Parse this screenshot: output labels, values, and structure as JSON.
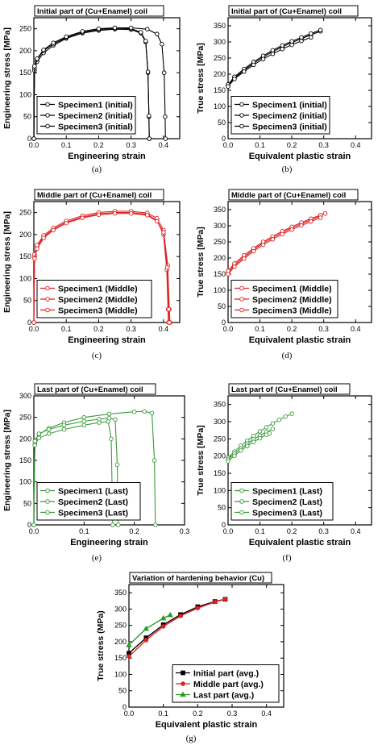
{
  "chart_data": [
    {
      "id": "a",
      "type": "line",
      "title": "Initial part of (Cu+Enamel) coil",
      "xlabel": "Engineering strain",
      "ylabel": "Engineering stress [MPa]",
      "xlim": [
        0,
        0.45
      ],
      "ylim": [
        0,
        275
      ],
      "xticks": [
        "0.0",
        "0.1",
        "0.2",
        "0.3",
        "0.4"
      ],
      "yticks": [
        "0",
        "50",
        "100",
        "150",
        "200",
        "250"
      ],
      "legend_position": "bottom-left",
      "color": "#000000",
      "caption": "(a)",
      "series": [
        {
          "name": "Specimen1 (initial)",
          "marker": "circle",
          "x": [
            0,
            0.002,
            0.01,
            0.03,
            0.06,
            0.1,
            0.15,
            0.2,
            0.25,
            0.3,
            0.33,
            0.345,
            0.352,
            0.355,
            0.356
          ],
          "y": [
            0,
            155,
            175,
            195,
            212,
            228,
            240,
            246,
            249,
            248,
            240,
            220,
            150,
            50,
            0
          ]
        },
        {
          "name": "Specimen2 (initial)",
          "marker": "circle",
          "x": [
            0,
            0.002,
            0.01,
            0.03,
            0.06,
            0.1,
            0.15,
            0.2,
            0.25,
            0.3,
            0.33,
            0.345,
            0.352,
            0.355,
            0.356
          ],
          "y": [
            0,
            160,
            180,
            200,
            215,
            230,
            242,
            248,
            251,
            250,
            242,
            222,
            152,
            52,
            0
          ]
        },
        {
          "name": "Specimen3 (initial)",
          "marker": "circle",
          "x": [
            0,
            0.002,
            0.01,
            0.03,
            0.06,
            0.1,
            0.15,
            0.2,
            0.25,
            0.3,
            0.35,
            0.38,
            0.395,
            0.402,
            0.405,
            0.406
          ],
          "y": [
            0,
            165,
            182,
            202,
            218,
            232,
            244,
            250,
            252,
            252,
            249,
            238,
            215,
            150,
            50,
            0
          ]
        }
      ]
    },
    {
      "id": "b",
      "type": "line",
      "title": "Initial part of (Cu+Enamel) coil",
      "xlabel": "Equivalent plastic strain",
      "ylabel": "True stress [MPa]",
      "xlim": [
        0,
        0.45
      ],
      "ylim": [
        0,
        375
      ],
      "xticks": [
        "0.0",
        "0.1",
        "0.2",
        "0.3",
        "0.4"
      ],
      "yticks": [
        "0",
        "50",
        "100",
        "150",
        "200",
        "250",
        "300",
        "350"
      ],
      "legend_position": "bottom-left",
      "color": "#000000",
      "caption": "(b)",
      "series": [
        {
          "name": "Specimen1 (initial)",
          "marker": "circle",
          "x": [
            0,
            0.02,
            0.05,
            0.08,
            0.11,
            0.14,
            0.17,
            0.2,
            0.23,
            0.26,
            0.29
          ],
          "y": [
            165,
            188,
            212,
            234,
            253,
            270,
            285,
            298,
            310,
            322,
            333
          ]
        },
        {
          "name": "Specimen2 (initial)",
          "marker": "circle",
          "x": [
            0,
            0.02,
            0.05,
            0.08,
            0.11,
            0.14,
            0.17,
            0.2,
            0.23,
            0.26,
            0.29
          ],
          "y": [
            168,
            192,
            216,
            238,
            257,
            274,
            289,
            302,
            314,
            326,
            337
          ]
        },
        {
          "name": "Specimen3 (initial)",
          "marker": "circle",
          "x": [
            0,
            0.02,
            0.05,
            0.08,
            0.11,
            0.14,
            0.17,
            0.2,
            0.23,
            0.26
          ],
          "y": [
            162,
            185,
            208,
            229,
            247,
            263,
            278,
            291,
            303,
            314
          ]
        }
      ]
    },
    {
      "id": "c",
      "type": "line",
      "title": "Middle part of (Cu+Enamel) coil",
      "xlabel": "Engineering strain",
      "ylabel": "Engineering stress [MPa]",
      "xlim": [
        0,
        0.45
      ],
      "ylim": [
        0,
        275
      ],
      "xticks": [
        "0.0",
        "0.1",
        "0.2",
        "0.3",
        "0.4"
      ],
      "yticks": [
        "0",
        "50",
        "100",
        "150",
        "200",
        "250"
      ],
      "legend_position": "bottom-left",
      "color": "#e02020",
      "caption": "(c)",
      "series": [
        {
          "name": "Specimen1 (Middle)",
          "marker": "circle",
          "x": [
            0,
            0.002,
            0.01,
            0.03,
            0.06,
            0.1,
            0.15,
            0.2,
            0.25,
            0.3,
            0.35,
            0.38,
            0.4,
            0.41,
            0.414,
            0.415
          ],
          "y": [
            0,
            150,
            172,
            195,
            212,
            228,
            240,
            247,
            250,
            250,
            246,
            232,
            200,
            120,
            30,
            0
          ]
        },
        {
          "name": "Specimen2 (Middle)",
          "marker": "circle",
          "x": [
            0,
            0.002,
            0.01,
            0.03,
            0.06,
            0.1,
            0.15,
            0.2,
            0.25,
            0.3,
            0.35,
            0.38,
            0.4,
            0.413,
            0.418,
            0.42
          ],
          "y": [
            0,
            155,
            176,
            198,
            215,
            231,
            243,
            250,
            253,
            253,
            249,
            237,
            210,
            130,
            30,
            0
          ]
        },
        {
          "name": "Specimen3 (Middle)",
          "marker": "circle",
          "x": [
            0,
            0.002,
            0.01,
            0.03,
            0.06,
            0.1,
            0.15,
            0.2,
            0.25,
            0.3,
            0.35,
            0.38,
            0.4,
            0.412,
            0.416,
            0.418
          ],
          "y": [
            0,
            145,
            168,
            192,
            210,
            226,
            238,
            245,
            248,
            248,
            244,
            230,
            205,
            125,
            30,
            0
          ]
        }
      ]
    },
    {
      "id": "d",
      "type": "line",
      "title": "Middle part of (Cu+Enamel) coil",
      "xlabel": "Equivalent plastic strain",
      "ylabel": "True stress [MPa]",
      "xlim": [
        0,
        0.45
      ],
      "ylim": [
        0,
        375
      ],
      "xticks": [
        "0.0",
        "0.1",
        "0.2",
        "0.3",
        "0.4"
      ],
      "yticks": [
        "0",
        "50",
        "100",
        "150",
        "200",
        "250",
        "300",
        "350"
      ],
      "legend_position": "bottom-left",
      "color": "#e02020",
      "caption": "(d)",
      "series": [
        {
          "name": "Specimen1 (Middle)",
          "marker": "circle",
          "x": [
            0,
            0.02,
            0.05,
            0.08,
            0.11,
            0.14,
            0.17,
            0.2,
            0.23,
            0.26,
            0.29
          ],
          "y": [
            155,
            178,
            203,
            226,
            246,
            263,
            279,
            293,
            306,
            318,
            330
          ]
        },
        {
          "name": "Specimen2 (Middle)",
          "marker": "circle",
          "x": [
            0,
            0.02,
            0.05,
            0.08,
            0.11,
            0.14,
            0.17,
            0.2,
            0.23,
            0.26,
            0.29,
            0.305
          ],
          "y": [
            160,
            183,
            208,
            230,
            250,
            267,
            283,
            297,
            310,
            322,
            333,
            338
          ]
        },
        {
          "name": "Specimen3 (Middle)",
          "marker": "circle",
          "x": [
            0,
            0.02,
            0.05,
            0.08,
            0.11,
            0.14,
            0.17,
            0.2,
            0.23,
            0.26,
            0.29
          ],
          "y": [
            150,
            173,
            198,
            221,
            241,
            258,
            274,
            288,
            301,
            313,
            325
          ]
        }
      ]
    },
    {
      "id": "e",
      "type": "line",
      "title": "Last part of (Cu+Enamel) coil",
      "xlabel": "Engineering strain",
      "ylabel": "Engineering stress [MPa]",
      "xlim": [
        0,
        0.3
      ],
      "ylim": [
        0,
        300
      ],
      "xticks": [
        "0.0",
        "0.1",
        "0.2",
        "0.3"
      ],
      "yticks": [
        "0",
        "50",
        "100",
        "150",
        "200",
        "250",
        "300"
      ],
      "legend_position": "bottom-left",
      "color": "#3a9a3a",
      "caption": "(e)",
      "series": [
        {
          "name": "Specimen1 (Last)",
          "marker": "circle",
          "x": [
            0,
            0.002,
            0.01,
            0.03,
            0.06,
            0.1,
            0.15,
            0.2,
            0.22,
            0.235,
            0.24,
            0.242
          ],
          "y": [
            0,
            190,
            210,
            225,
            238,
            250,
            258,
            263,
            264,
            260,
            150,
            0
          ]
        },
        {
          "name": "Specimen2 (Last)",
          "marker": "circle",
          "x": [
            0,
            0.002,
            0.01,
            0.03,
            0.06,
            0.1,
            0.13,
            0.15,
            0.162,
            0.166,
            0.168
          ],
          "y": [
            0,
            195,
            212,
            222,
            232,
            241,
            246,
            248,
            245,
            140,
            0
          ]
        },
        {
          "name": "Specimen3 (Last)",
          "marker": "circle",
          "x": [
            0,
            0.002,
            0.01,
            0.03,
            0.06,
            0.1,
            0.13,
            0.148,
            0.154,
            0.157
          ],
          "y": [
            0,
            185,
            202,
            212,
            222,
            232,
            238,
            240,
            200,
            0
          ]
        }
      ]
    },
    {
      "id": "f",
      "type": "line",
      "title": "Last part of (Cu+Enamel) coil",
      "xlabel": "Equivalent plastic strain",
      "ylabel": "True stress [MPa]",
      "xlim": [
        0,
        0.45
      ],
      "ylim": [
        0,
        375
      ],
      "xticks": [
        "0.0",
        "0.1",
        "0.2",
        "0.3",
        "0.4"
      ],
      "yticks": [
        "0",
        "50",
        "100",
        "150",
        "200",
        "250",
        "300",
        "350"
      ],
      "legend_position": "bottom-left",
      "color": "#3a9a3a",
      "caption": "(f)",
      "series": [
        {
          "name": "Specimen1 (Last)",
          "marker": "circle",
          "x": [
            0,
            0.02,
            0.04,
            0.06,
            0.08,
            0.1,
            0.12,
            0.14,
            0.16,
            0.18,
            0.2
          ],
          "y": [
            195,
            213,
            230,
            245,
            259,
            272,
            284,
            295,
            305,
            315,
            323
          ]
        },
        {
          "name": "Specimen2 (Last)",
          "marker": "circle",
          "x": [
            0,
            0.02,
            0.04,
            0.06,
            0.08,
            0.1,
            0.12,
            0.14
          ],
          "y": [
            190,
            207,
            222,
            236,
            249,
            260,
            270,
            279
          ]
        },
        {
          "name": "Specimen3 (Last)",
          "marker": "circle",
          "x": [
            0,
            0.02,
            0.04,
            0.06,
            0.08,
            0.1,
            0.12,
            0.13
          ],
          "y": [
            185,
            201,
            216,
            229,
            241,
            252,
            262,
            266
          ]
        }
      ]
    },
    {
      "id": "g",
      "type": "line",
      "title": "Variation of hardening behavior (Cu)",
      "xlabel": "Equivalent plastic strain",
      "ylabel": "True stress (MPa)",
      "xlim": [
        0,
        0.45
      ],
      "ylim": [
        0,
        375
      ],
      "xticks": [
        "0.0",
        "0.1",
        "0.2",
        "0.3",
        "0.4"
      ],
      "yticks": [
        "0",
        "50",
        "100",
        "150",
        "200",
        "250",
        "300",
        "350"
      ],
      "legend_position": "bottom-right",
      "color": "#000000",
      "caption": "(g)",
      "series": [
        {
          "name": "Initial part (avg.)",
          "color": "#000000",
          "marker": "square",
          "x": [
            0,
            0.05,
            0.1,
            0.15,
            0.2,
            0.25,
            0.28
          ],
          "y": [
            165,
            212,
            252,
            283,
            307,
            323,
            330
          ]
        },
        {
          "name": "Middle part (avg.)",
          "color": "#e02020",
          "marker": "circle",
          "x": [
            0,
            0.05,
            0.1,
            0.15,
            0.2,
            0.25,
            0.28
          ],
          "y": [
            155,
            205,
            247,
            279,
            303,
            322,
            330
          ]
        },
        {
          "name": "Last part (avg.)",
          "color": "#2a9a2a",
          "marker": "triangle",
          "x": [
            0,
            0.05,
            0.1,
            0.12
          ],
          "y": [
            190,
            240,
            272,
            282
          ]
        }
      ]
    }
  ]
}
